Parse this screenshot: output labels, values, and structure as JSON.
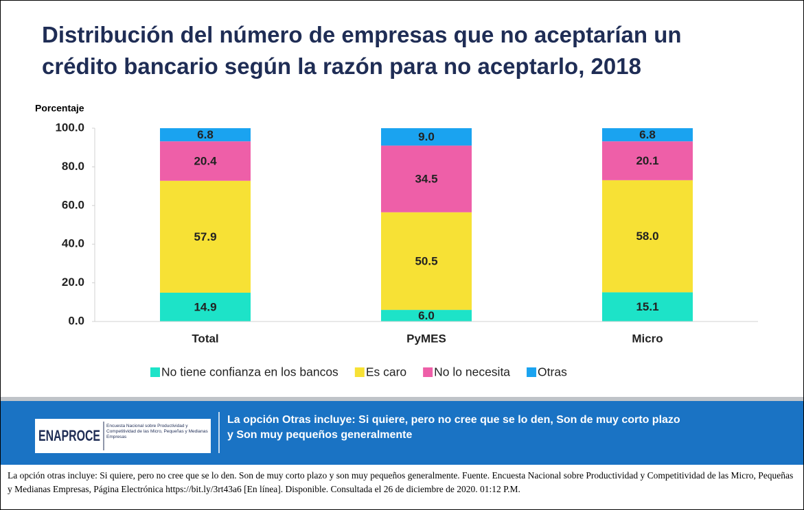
{
  "chart_data": {
    "type": "stacked_bar",
    "title": "Distribución del número de empresas que no aceptarían un crédito bancario según la razón para no aceptarlo, 2018",
    "y_label": "Porcentaje",
    "categories": [
      "Total",
      "PyMES",
      "Micro"
    ],
    "series": [
      {
        "name": "No tiene confianza en los bancos",
        "color": "#1de3c8",
        "values": [
          14.9,
          6.0,
          15.1
        ],
        "value_labels": [
          "14.9",
          "6.0",
          "15.1"
        ]
      },
      {
        "name": "Es caro",
        "color": "#f7e135",
        "values": [
          57.9,
          50.5,
          58.0
        ],
        "value_labels": [
          "57.9",
          "50.5",
          "58.0"
        ]
      },
      {
        "name": "No lo necesita",
        "color": "#ee5fa8",
        "values": [
          20.4,
          34.5,
          20.1
        ],
        "value_labels": [
          "20.4",
          "34.5",
          "20.1"
        ]
      },
      {
        "name": "Otras",
        "color": "#1aa3f0",
        "values": [
          6.8,
          9.0,
          6.8
        ],
        "value_labels": [
          "6.8",
          "9.0",
          "6.8"
        ]
      }
    ],
    "ylim": [
      0,
      100
    ],
    "yticks": [
      {
        "value": 0,
        "label": "0.0"
      },
      {
        "value": 20,
        "label": "20.0"
      },
      {
        "value": 40,
        "label": "40.0"
      },
      {
        "value": 60,
        "label": "60.0"
      },
      {
        "value": 80,
        "label": "80.0"
      },
      {
        "value": 100,
        "label": "100.0"
      }
    ],
    "legend": "bottom"
  },
  "banner": {
    "logo": "ENAPROCE",
    "logo_subtitle": "Encuesta Nacional sobre Productividad y Competitividad de las Micro, Pequeñas y Medianas Empresas",
    "text": [
      "La opción Otras incluye: Si quiere, pero no cree que se lo den, Son de muy corto plazo",
      "y Son muy pequeños generalmente"
    ]
  },
  "footnote": "La opción otras incluye:  Si quiere,  pero no cree que se lo den. Son de muy corto plazo y son muy pequeños generalmente.  Fuente. Encuesta Nacional sobre Productividad y Competitividad de las Micro, Pequeñas y Medianas Empresas, Página Electrónica https://bit.ly/3rt43a6  [En línea]. Disponible.  Consultada el 26 de diciembre de 2020. 01:12 P.M."
}
